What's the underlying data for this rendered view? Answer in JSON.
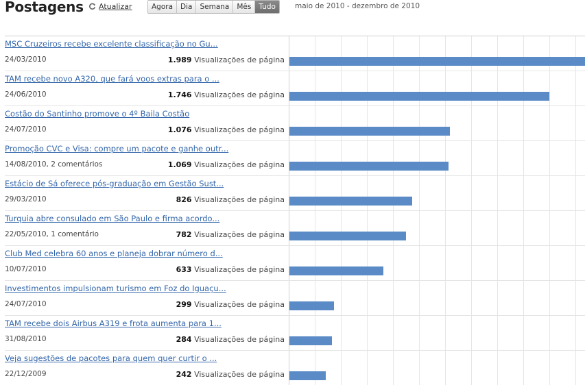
{
  "header": {
    "title": "Postagens",
    "refresh_label": "Atualizar",
    "ranges": [
      "Agora",
      "Dia",
      "Semana",
      "Mês",
      "Tudo"
    ],
    "active_range": "Tudo",
    "date_range": "maio de 2010 - dezembro de 2010"
  },
  "views_suffix": "Visualizações de página",
  "max_views": 1989,
  "colors": {
    "bar": "#5b8bc6",
    "link": "#3366aa",
    "active_tab": "#777777"
  },
  "posts": [
    {
      "title": "MSC Cruzeiros recebe excelente classificação no Gu...",
      "meta": "24/03/2010",
      "views": "1.989",
      "views_num": 1989
    },
    {
      "title": "TAM recebe novo A320, que fará voos extras para o ...",
      "meta": "24/06/2010",
      "views": "1.746",
      "views_num": 1746
    },
    {
      "title": "Costão do Santinho promove o 4º Baila Costão",
      "meta": "24/07/2010",
      "views": "1.076",
      "views_num": 1076
    },
    {
      "title": "Promoção CVC e Visa: compre um pacote e ganhe outr...",
      "meta": "14/08/2010, 2 comentários",
      "views": "1.069",
      "views_num": 1069
    },
    {
      "title": "Estácio de Sá oferece pós-graduação em Gestão Sust...",
      "meta": "29/03/2010",
      "views": "826",
      "views_num": 826
    },
    {
      "title": "Turquia abre consulado em São Paulo e firma acordo...",
      "meta": "22/05/2010, 1 comentário",
      "views": "782",
      "views_num": 782
    },
    {
      "title": "Club Med celebra 60 anos e planeja dobrar número d...",
      "meta": "10/07/2010",
      "views": "633",
      "views_num": 633
    },
    {
      "title": "Investimentos impulsionam turismo em Foz do Iguaçu...",
      "meta": "24/07/2010",
      "views": "299",
      "views_num": 299
    },
    {
      "title": "TAM recebe dois Airbus A319 e frota aumenta para 1...",
      "meta": "31/08/2010",
      "views": "284",
      "views_num": 284
    },
    {
      "title": "Veja sugestões de pacotes para quem quer curtir o ...",
      "meta": "22/12/2009",
      "views": "242",
      "views_num": 242
    }
  ]
}
